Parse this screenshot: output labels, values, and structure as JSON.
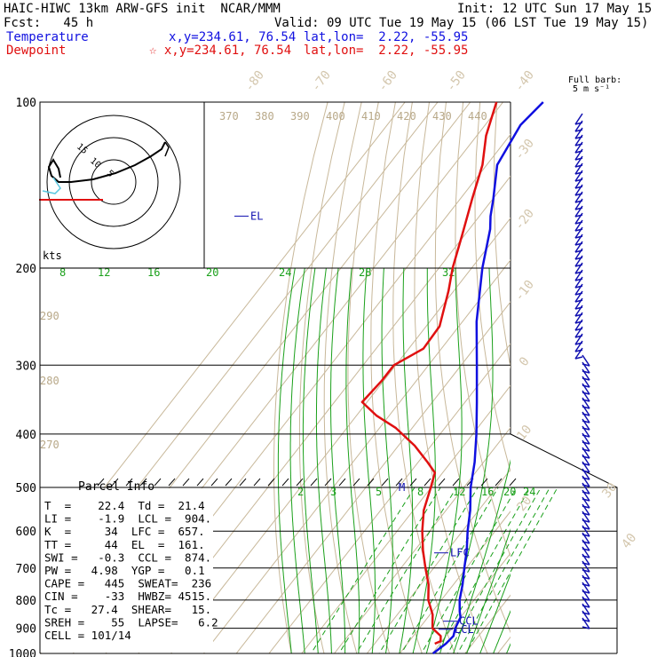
{
  "header": {
    "line1_left": "HAIC-HIWC 13km ARW-GFS init  NCAR/MMM",
    "line1_right": "Init: 12 UTC Sun 17 May 15",
    "line2_left": "Fcst:   45 h",
    "line2_right": "Valid: 09 UTC Tue 19 May 15 (06 LST Tue 19 May 15)",
    "temp_label": "Temperature",
    "temp_xy": "x,y=234.61, 76.54",
    "temp_latlon": "lat,lon=  2.22, -55.95",
    "dew_label": "Dewpoint",
    "dew_xy": "☆ x,y=234.61, 76.54",
    "dew_latlon": "lat,lon=  2.22, -55.95"
  },
  "colors": {
    "temperature": "#1010e0",
    "dewpoint": "#e01010",
    "isotherm": "#c8b89a",
    "mixing_ratio": "#1aa01a",
    "barb": "#1010b0"
  },
  "barb_label": {
    "line1": "Full barb:",
    "line2": "5 m s⁻¹"
  },
  "hodograph": {
    "kts_label": "kts",
    "ring_labels": [
      "15",
      "10",
      "5"
    ]
  },
  "chart_data": {
    "type": "line",
    "title": "",
    "xlabel": "",
    "ylabel": "",
    "pressure_levels": [
      100,
      200,
      300,
      400,
      500,
      600,
      700,
      800,
      900,
      1000
    ],
    "isotherm_labels": [
      "-80",
      "-70",
      "-60",
      "-50",
      "-40",
      "-30",
      "-20",
      "-10",
      "0",
      "10",
      "20",
      "30",
      "40"
    ],
    "theta_labels": [
      "370",
      "380",
      "390",
      "400",
      "410",
      "420",
      "430",
      "440"
    ],
    "theta_left_labels": [
      "290",
      "280",
      "270"
    ],
    "theta_e_labels": [
      "8",
      "12",
      "16",
      "20",
      "24",
      "28",
      "32"
    ],
    "mixing_ratio_labels": [
      "2",
      "3",
      "5",
      "8",
      "12",
      "16",
      "20",
      "24"
    ],
    "series": [
      {
        "name": "Temperature",
        "color": "#1010e0",
        "points": [
          [
            1000,
            20.2
          ],
          [
            960,
            21.8
          ],
          [
            930,
            22.3
          ],
          [
            900,
            21.0
          ],
          [
            880,
            20.5
          ],
          [
            860,
            20.0
          ],
          [
            840,
            18.4
          ],
          [
            800,
            15.6
          ],
          [
            750,
            12.8
          ],
          [
            700,
            9.4
          ],
          [
            650,
            5.9
          ],
          [
            600,
            1.6
          ],
          [
            550,
            -2.6
          ],
          [
            500,
            -7.9
          ],
          [
            450,
            -12.7
          ],
          [
            400,
            -18.9
          ],
          [
            350,
            -26.4
          ],
          [
            300,
            -35.2
          ],
          [
            250,
            -45.7
          ],
          [
            200,
            -56.7
          ],
          [
            170,
            -63.6
          ],
          [
            161,
            -66.6
          ],
          [
            150,
            -69.8
          ],
          [
            130,
            -76.8
          ],
          [
            110,
            -79.2
          ],
          [
            100,
            -77.7
          ]
        ]
      },
      {
        "name": "Dewpoint",
        "color": "#e01010",
        "points": [
          [
            960,
            18.4
          ],
          [
            950,
            19.6
          ],
          [
            930,
            18.4
          ],
          [
            900,
            14.0
          ],
          [
            850,
            10.8
          ],
          [
            800,
            6.0
          ],
          [
            750,
            2.4
          ],
          [
            700,
            -2.5
          ],
          [
            650,
            -7.5
          ],
          [
            600,
            -12.3
          ],
          [
            550,
            -16.8
          ],
          [
            500,
            -20.1
          ],
          [
            470,
            -22.4
          ],
          [
            450,
            -27.1
          ],
          [
            420,
            -35.0
          ],
          [
            390,
            -45.0
          ],
          [
            370,
            -54.0
          ],
          [
            350,
            -61.5
          ],
          [
            320,
            -60.6
          ],
          [
            300,
            -60.6
          ],
          [
            280,
            -55.5
          ],
          [
            255,
            -55.9
          ],
          [
            220,
            -61.6
          ],
          [
            200,
            -65.8
          ],
          [
            175,
            -70.6
          ],
          [
            150,
            -76.3
          ],
          [
            130,
            -81.3
          ],
          [
            115,
            -87.2
          ],
          [
            100,
            -92.0
          ]
        ]
      }
    ],
    "parcel_markers": [
      {
        "label": "EL",
        "p": 161
      },
      {
        "label": "LFC",
        "p": 657
      },
      {
        "label": "CCL",
        "p": 874
      },
      {
        "label": "LCL",
        "p": 904
      },
      {
        "label": "M",
        "p": 500
      }
    ]
  },
  "parcel_info": {
    "title": "Parcel Info",
    "rows": [
      "T  =    22.4  Td =  21.4",
      "LI =    -1.9  LCL =  904.",
      "K  =     34  LFC =  657.",
      "TT =     44  EL  =  161.",
      "SWI =   -0.3  CCL =  874.",
      "PW =   4.98  YGP =   0.1",
      "CAPE =   445  SWEAT=  236",
      "CIN =    -33  HWBZ= 4515.",
      "Tc =   27.4  SHEAR=   15.",
      "SREH =    55  LAPSE=   6.2",
      "CELL = 101/14"
    ]
  }
}
